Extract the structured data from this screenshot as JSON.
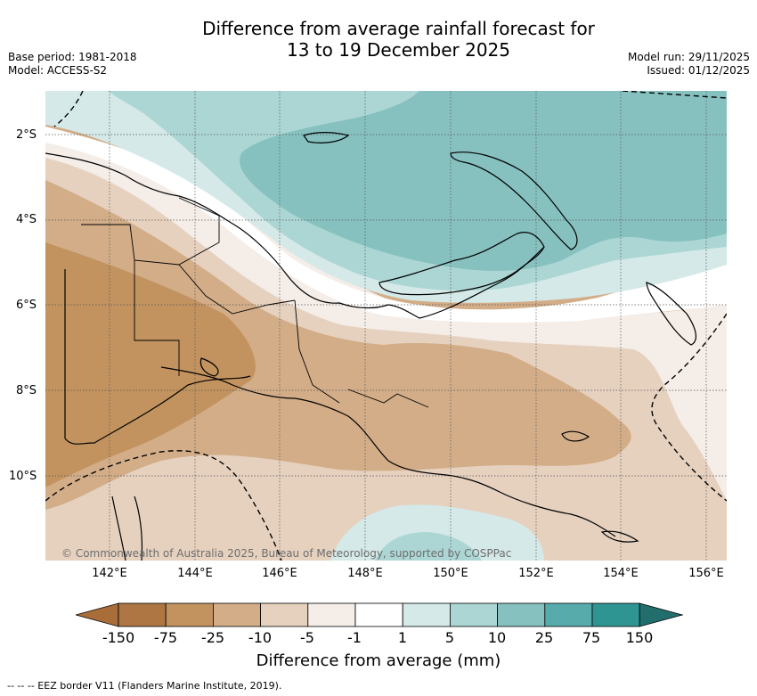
{
  "title": {
    "line1": "Difference from average rainfall forecast for",
    "line2": "13 to 19 December 2025"
  },
  "meta": {
    "base_period": "Base period: 1981-2018",
    "model": "Model: ACCESS-S2",
    "model_run": "Model run: 29/11/2025",
    "issued": "Issued: 01/12/2025"
  },
  "axes": {
    "lat_labels": [
      "2°S",
      "4°S",
      "6°S",
      "8°S",
      "10°S"
    ],
    "lon_labels": [
      "142°E",
      "144°E",
      "146°E",
      "148°E",
      "150°E",
      "152°E",
      "154°E",
      "156°E"
    ]
  },
  "copyright": "© Commonwealth of Australia 2025, Bureau of Meteorology, supported by COSPPac",
  "colorbar": {
    "title": "Difference from average (mm)",
    "ticks": [
      "-150",
      "-75",
      "-25",
      "-10",
      "-5",
      "-1",
      "1",
      "5",
      "10",
      "25",
      "75",
      "150"
    ],
    "colors": [
      "#a86d39",
      "#ad7642",
      "#c2935f",
      "#d2ad88",
      "#e6d1bf",
      "#f4ede8",
      "#ffffff",
      "#d4e9e8",
      "#acd6d4",
      "#86c1c0",
      "#57abab",
      "#2e9592",
      "#216e6c"
    ]
  },
  "footer": "--  --  -- EEZ border V11 (Flanders Marine Institute, 2019)."
}
